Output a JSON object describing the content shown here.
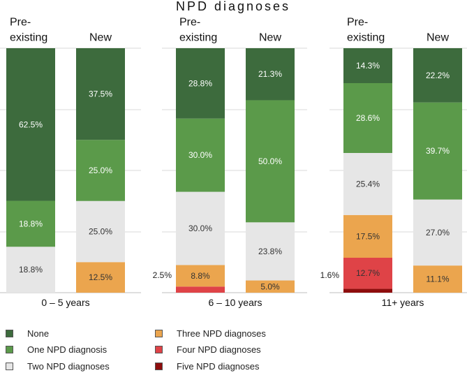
{
  "chart_data": {
    "type": "bar",
    "stacked": true,
    "title": "NPD diagnoses",
    "groups": [
      {
        "label": "0 – 5 years",
        "bars": [
          {
            "label": "Pre-\nexisting",
            "values": {
              "none": 62.5,
              "one": 18.8,
              "two": 18.8,
              "three": 0,
              "four": 0,
              "five": 0
            },
            "labels": {
              "none": "62.5%",
              "one": "18.8%",
              "two": "18.8%"
            },
            "outside_label": ""
          },
          {
            "label": "New",
            "values": {
              "none": 37.5,
              "one": 25.0,
              "two": 25.0,
              "three": 12.5,
              "four": 0,
              "five": 0
            },
            "labels": {
              "none": "37.5%",
              "one": "25.0%",
              "two": "25.0%",
              "three": "12.5%"
            },
            "outside_label": ""
          }
        ]
      },
      {
        "label": "6 – 10 years",
        "bars": [
          {
            "label": "Pre-\nexisting",
            "values": {
              "none": 28.8,
              "one": 30.0,
              "two": 30.0,
              "three": 8.8,
              "four": 2.5,
              "five": 0
            },
            "labels": {
              "none": "28.8%",
              "one": "30.0%",
              "two": "30.0%",
              "three": "8.8%"
            },
            "outside_label": "2.5%"
          },
          {
            "label": "New",
            "values": {
              "none": 21.3,
              "one": 50.0,
              "two": 23.8,
              "three": 5.0,
              "four": 0,
              "five": 0
            },
            "labels": {
              "none": "21.3%",
              "one": "50.0%",
              "two": "23.8%",
              "three": "5.0%"
            },
            "outside_label": ""
          }
        ]
      },
      {
        "label": "11+ years",
        "bars": [
          {
            "label": "Pre-\nexisting",
            "values": {
              "none": 14.3,
              "one": 28.6,
              "two": 25.4,
              "three": 17.5,
              "four": 12.7,
              "five": 1.6
            },
            "labels": {
              "none": "14.3%",
              "one": "28.6%",
              "two": "25.4%",
              "three": "17.5%",
              "four": "12.7%"
            },
            "outside_label": "1.6%"
          },
          {
            "label": "New",
            "values": {
              "none": 22.2,
              "one": 39.7,
              "two": 27.0,
              "three": 11.1,
              "four": 0,
              "five": 0
            },
            "labels": {
              "none": "22.2%",
              "one": "39.7%",
              "two": "27.0%",
              "three": "11.1%"
            },
            "outside_label": ""
          }
        ]
      }
    ],
    "series": [
      {
        "key": "none",
        "name": "None",
        "color": "#3d6b3d"
      },
      {
        "key": "one",
        "name": "One NPD diagnosis",
        "color": "#5b9a4a"
      },
      {
        "key": "two",
        "name": "Two NPD diagnoses",
        "color": "#e6e6e6"
      },
      {
        "key": "three",
        "name": "Three NPD diagnoses",
        "color": "#eba54e"
      },
      {
        "key": "four",
        "name": "Four NPD diagnoses",
        "color": "#df4347"
      },
      {
        "key": "five",
        "name": "Five NPD diagnoses",
        "color": "#8e0d0d"
      }
    ],
    "ylim": [
      0,
      100
    ],
    "legend_position": "bottom"
  }
}
